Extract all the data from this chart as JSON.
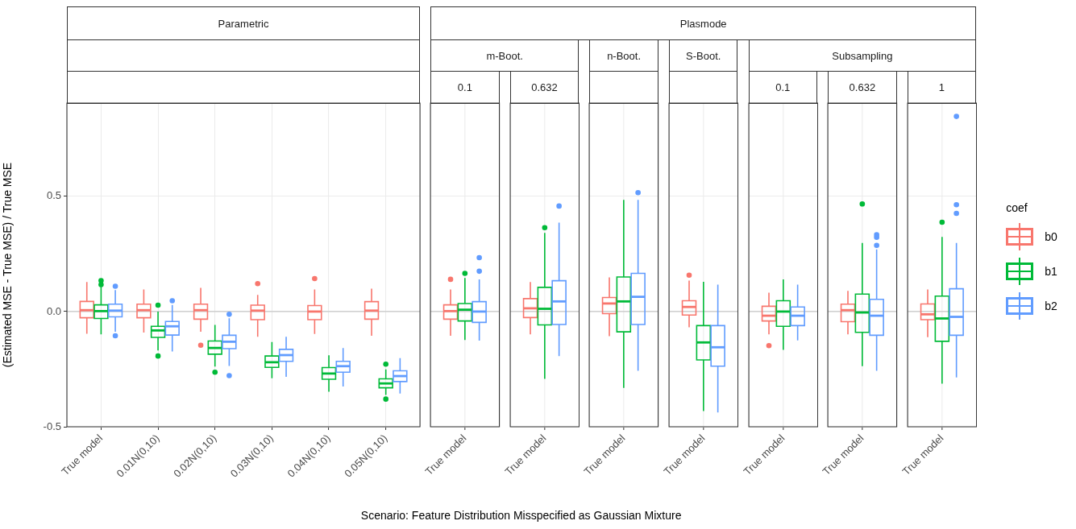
{
  "chart_data": [
    {
      "type": "box",
      "title": "Parametric",
      "legend_title": "coef",
      "legend": "right",
      "ylabel": "(Estimated MSE - True MSE) / True MSE",
      "xlabel": "Scenario: Feature Distribution Misspecified as Gaussian Mixture",
      "categories": [
        "True model",
        "0.01N(0,10)",
        "0.02N(0,10)",
        "0.03N(0,10)",
        "0.04N(0,10)",
        "0.05N(0,10)"
      ],
      "ylim": [
        -0.5,
        0.905
      ],
      "yticks": [
        -0.5,
        {
          "value": 0,
          "label": "0.0"
        },
        0.5
      ],
      "grid": true,
      "ref_lines": [
        {
          "axis": "y",
          "value": 0,
          "color": "#c8c8c8"
        }
      ],
      "series": [
        {
          "name": "b0",
          "color": "#f8766d",
          "boxes": [
            {
              "low": -0.096,
              "q1": -0.027,
              "median": 0.006,
              "q3": 0.044,
              "high": 0.128
            },
            {
              "low": -0.091,
              "q1": -0.027,
              "median": 0.006,
              "q3": 0.032,
              "high": 0.096
            },
            {
              "low": -0.088,
              "q1": -0.033,
              "median": 0.006,
              "q3": 0.032,
              "high": 0.103,
              "outliers": [
                -0.146
              ]
            },
            {
              "low": -0.109,
              "q1": -0.035,
              "median": 0.004,
              "q3": 0.028,
              "high": 0.072,
              "outliers": [
                0.121
              ]
            },
            {
              "low": -0.097,
              "q1": -0.035,
              "median": 0,
              "q3": 0.026,
              "high": 0.096,
              "outliers": [
                0.143
              ]
            },
            {
              "low": -0.105,
              "q1": -0.033,
              "median": 0.004,
              "q3": 0.043,
              "high": 0.099
            }
          ]
        },
        {
          "name": "b1",
          "color": "#00ba38",
          "boxes": [
            {
              "low": -0.099,
              "q1": -0.03,
              "median": 0.002,
              "q3": 0.029,
              "high": 0.11,
              "outliers": [
                0.134,
                0.117
              ]
            },
            {
              "low": -0.169,
              "q1": -0.112,
              "median": -0.082,
              "q3": -0.064,
              "high": 0,
              "outliers": [
                0.028,
                -0.193
              ]
            },
            {
              "low": -0.239,
              "q1": -0.185,
              "median": -0.158,
              "q3": -0.128,
              "high": -0.058,
              "outliers": [
                -0.263
              ]
            },
            {
              "low": -0.289,
              "q1": -0.242,
              "median": -0.22,
              "q3": -0.193,
              "high": -0.132
            },
            {
              "low": -0.348,
              "q1": -0.294,
              "median": -0.269,
              "q3": -0.243,
              "high": -0.19
            },
            {
              "low": -0.362,
              "q1": -0.331,
              "median": -0.312,
              "q3": -0.292,
              "high": -0.251,
              "outliers": [
                -0.228,
                -0.38
              ]
            }
          ]
        },
        {
          "name": "b2",
          "color": "#619cff",
          "boxes": [
            {
              "low": -0.088,
              "q1": -0.023,
              "median": 0.004,
              "q3": 0.032,
              "high": 0.093,
              "outliers": [
                0.11,
                -0.105
              ]
            },
            {
              "low": -0.173,
              "q1": -0.102,
              "median": -0.064,
              "q3": -0.043,
              "high": 0.029,
              "outliers": [
                0.047
              ]
            },
            {
              "low": -0.236,
              "q1": -0.161,
              "median": -0.131,
              "q3": -0.103,
              "high": -0.029,
              "outliers": [
                -0.012,
                -0.278
              ]
            },
            {
              "low": -0.283,
              "q1": -0.216,
              "median": -0.189,
              "q3": -0.164,
              "high": -0.109
            },
            {
              "low": -0.325,
              "q1": -0.263,
              "median": -0.237,
              "q3": -0.216,
              "high": -0.158
            },
            {
              "low": -0.356,
              "q1": -0.304,
              "median": -0.28,
              "q3": -0.257,
              "high": -0.202
            }
          ]
        }
      ]
    },
    {
      "type": "box",
      "title": "0.1",
      "annotations": [
        "Plasmode",
        "m-Boot."
      ],
      "categories": [
        "True model"
      ],
      "ylim": [
        -0.5,
        0.905
      ],
      "yticks": [
        -0.5,
        0,
        0.5
      ],
      "tick_labels": "x",
      "grid": true,
      "ref_lines": [
        {
          "axis": "y",
          "value": 0,
          "color": "#c8c8c8"
        }
      ],
      "series": [
        {
          "color": "#f8766d",
          "boxes": [
            {
              "low": -0.105,
              "q1": -0.033,
              "median": 0.002,
              "q3": 0.029,
              "high": 0.096,
              "outliers": [
                0.14
              ]
            }
          ]
        },
        {
          "color": "#00ba38",
          "boxes": [
            {
              "low": -0.123,
              "q1": -0.041,
              "median": 0.008,
              "q3": 0.035,
              "high": 0.146,
              "outliers": [
                0.166
              ]
            }
          ]
        },
        {
          "color": "#619cff",
          "boxes": [
            {
              "low": -0.126,
              "q1": -0.047,
              "median": 0,
              "q3": 0.043,
              "high": 0.14,
              "outliers": [
                0.234,
                0.175
              ]
            }
          ]
        }
      ]
    },
    {
      "type": "box",
      "title": "0.632",
      "categories": [
        "True model"
      ],
      "ylim": [
        -0.5,
        0.905
      ],
      "yticks": [
        -0.5,
        0,
        0.5
      ],
      "tick_labels": "x",
      "grid": true,
      "ref_lines": [
        {
          "axis": "y",
          "value": 0,
          "color": "#c8c8c8"
        }
      ],
      "series": [
        {
          "color": "#f8766d",
          "boxes": [
            {
              "low": -0.099,
              "q1": -0.026,
              "median": 0.014,
              "q3": 0.056,
              "high": 0.128
            }
          ]
        },
        {
          "color": "#00ba38",
          "boxes": [
            {
              "low": -0.292,
              "q1": -0.058,
              "median": 0.012,
              "q3": 0.105,
              "high": 0.341,
              "outliers": [
                0.364
              ]
            }
          ]
        },
        {
          "color": "#619cff",
          "boxes": [
            {
              "low": -0.193,
              "q1": -0.056,
              "median": 0.044,
              "q3": 0.134,
              "high": 0.386,
              "outliers": [
                0.458
              ]
            }
          ]
        }
      ]
    },
    {
      "type": "box",
      "title": "n-Boot.",
      "categories": [
        "True model"
      ],
      "ylim": [
        -0.5,
        0.905
      ],
      "yticks": [
        -0.5,
        0,
        0.5
      ],
      "tick_labels": "x",
      "grid": true,
      "ref_lines": [
        {
          "axis": "y",
          "value": 0,
          "color": "#c8c8c8"
        }
      ],
      "series": [
        {
          "color": "#f8766d",
          "boxes": [
            {
              "low": -0.107,
              "q1": -0.009,
              "median": 0.035,
              "q3": 0.061,
              "high": 0.148
            }
          ]
        },
        {
          "color": "#00ba38",
          "boxes": [
            {
              "low": -0.331,
              "q1": -0.088,
              "median": 0.044,
              "q3": 0.15,
              "high": 0.485
            }
          ]
        },
        {
          "color": "#619cff",
          "boxes": [
            {
              "low": -0.257,
              "q1": -0.056,
              "median": 0.064,
              "q3": 0.166,
              "high": 0.485,
              "outliers": [
                0.516
              ]
            }
          ]
        }
      ]
    },
    {
      "type": "box",
      "title": "S-Boot.",
      "categories": [
        "True model"
      ],
      "ylim": [
        -0.5,
        0.905
      ],
      "yticks": [
        -0.5,
        0,
        0.5
      ],
      "tick_labels": "x",
      "grid": true,
      "ref_lines": [
        {
          "axis": "y",
          "value": 0,
          "color": "#c8c8c8"
        }
      ],
      "series": [
        {
          "color": "#f8766d",
          "boxes": [
            {
              "low": -0.068,
              "q1": -0.015,
              "median": 0.02,
              "q3": 0.047,
              "high": 0.134,
              "outliers": [
                0.158
              ]
            }
          ]
        },
        {
          "color": "#00ba38",
          "boxes": [
            {
              "low": -0.432,
              "q1": -0.21,
              "median": -0.134,
              "q3": -0.061,
              "high": 0.129
            }
          ]
        },
        {
          "color": "#619cff",
          "boxes": [
            {
              "low": -0.438,
              "q1": -0.237,
              "median": -0.155,
              "q3": -0.061,
              "high": 0.117
            }
          ]
        }
      ]
    },
    {
      "type": "box",
      "title": "0.1",
      "annotations": [
        "Subsampling"
      ],
      "categories": [
        "True model"
      ],
      "ylim": [
        -0.5,
        0.905
      ],
      "yticks": [
        -0.5,
        0,
        0.5
      ],
      "tick_labels": "x",
      "grid": true,
      "ref_lines": [
        {
          "axis": "y",
          "value": 0,
          "color": "#c8c8c8"
        }
      ],
      "series": [
        {
          "color": "#f8766d",
          "boxes": [
            {
              "low": -0.099,
              "q1": -0.041,
              "median": -0.018,
              "q3": 0.023,
              "high": 0.082,
              "outliers": [
                -0.148
              ]
            }
          ]
        },
        {
          "color": "#00ba38",
          "boxes": [
            {
              "low": -0.166,
              "q1": -0.064,
              "median": 0,
              "q3": 0.047,
              "high": 0.14
            }
          ]
        },
        {
          "color": "#619cff",
          "boxes": [
            {
              "low": -0.125,
              "q1": -0.061,
              "median": -0.018,
              "q3": 0.02,
              "high": 0.117
            }
          ]
        }
      ]
    },
    {
      "type": "box",
      "title": "0.632",
      "categories": [
        "True model"
      ],
      "ylim": [
        -0.5,
        0.905
      ],
      "yticks": [
        -0.5,
        0,
        0.5
      ],
      "tick_labels": "x",
      "grid": true,
      "ref_lines": [
        {
          "axis": "y",
          "value": 0,
          "color": "#c8c8c8"
        }
      ],
      "series": [
        {
          "color": "#f8766d",
          "boxes": [
            {
              "low": -0.099,
              "q1": -0.044,
              "median": 0.006,
              "q3": 0.032,
              "high": 0.09
            }
          ]
        },
        {
          "color": "#00ba38",
          "boxes": [
            {
              "low": -0.237,
              "q1": -0.09,
              "median": -0.004,
              "q3": 0.076,
              "high": 0.298,
              "outliers": [
                0.467
              ]
            }
          ]
        },
        {
          "color": "#619cff",
          "boxes": [
            {
              "low": -0.257,
              "q1": -0.103,
              "median": -0.018,
              "q3": 0.053,
              "high": 0.27,
              "outliers": [
                0.333,
                0.322,
                0.287
              ]
            }
          ]
        }
      ]
    },
    {
      "type": "box",
      "title": "1",
      "categories": [
        "True model"
      ],
      "ylim": [
        -0.5,
        0.905
      ],
      "yticks": [
        -0.5,
        0,
        0.5
      ],
      "tick_labels": "x",
      "grid": true,
      "ref_lines": [
        {
          "axis": "y",
          "value": 0,
          "color": "#c8c8c8"
        }
      ],
      "series": [
        {
          "color": "#f8766d",
          "boxes": [
            {
              "low": -0.111,
              "q1": -0.035,
              "median": -0.012,
              "q3": 0.033,
              "high": 0.096
            }
          ]
        },
        {
          "color": "#00ba38",
          "boxes": [
            {
              "low": -0.313,
              "q1": -0.129,
              "median": -0.03,
              "q3": 0.067,
              "high": 0.324,
              "outliers": [
                0.388
              ]
            }
          ]
        },
        {
          "color": "#619cff",
          "boxes": [
            {
              "low": -0.286,
              "q1": -0.103,
              "median": -0.023,
              "q3": 0.099,
              "high": 0.298,
              "outliers": [
                0.847,
                0.464,
                0.426
              ]
            }
          ]
        }
      ]
    }
  ]
}
